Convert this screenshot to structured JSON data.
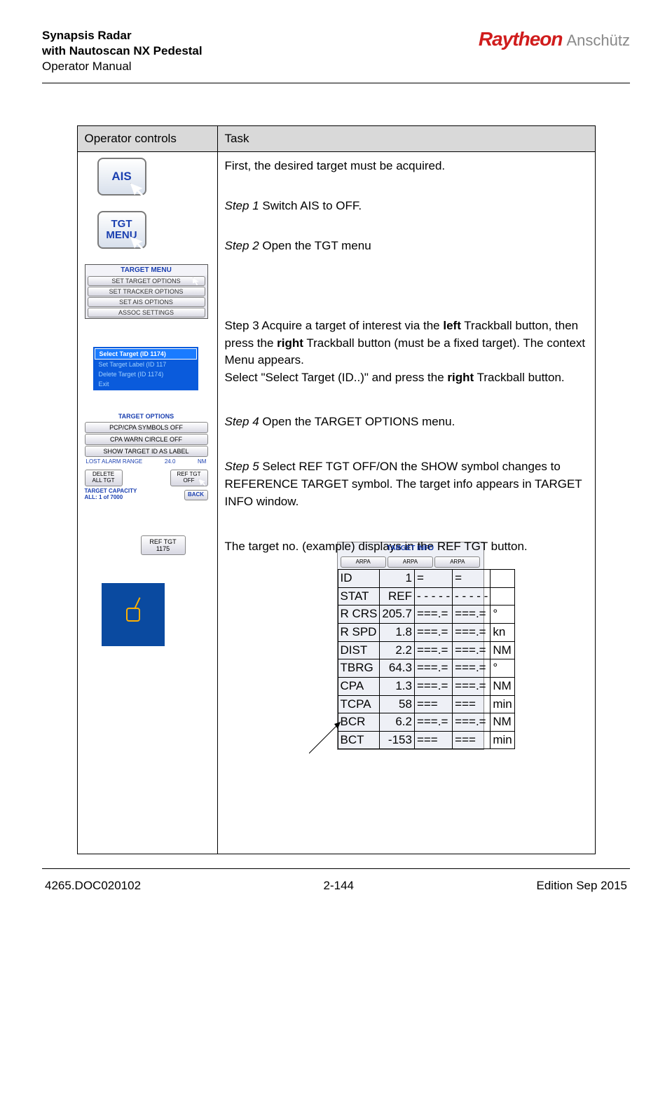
{
  "header": {
    "title_line1": "Synapsis Radar",
    "title_line2": "with Nautoscan NX Pedestal",
    "title_line3": "Operator Manual",
    "brand1": "Raytheon",
    "brand2": "Anschütz"
  },
  "table": {
    "col1_header": "Operator controls",
    "col2_header": "Task"
  },
  "task": {
    "intro": "First, the desired target must be acquired.",
    "step1_label": "Step 1",
    "step1_text": " Switch AIS to OFF.",
    "step2_label": "Step 2",
    "step2_text": " Open the TGT menu",
    "step3_full": "Step 3 Acquire a target of interest via the ",
    "step3_b1": "left",
    "step3_mid": " Trackball button, then press the ",
    "step3_b2": "right",
    "step3_tail1": " Trackball button (must be a fixed target). The context Menu appears.",
    "step3_line2a": "Select \"Select Target (ID..)\" and press the ",
    "step3_b3": "right",
    "step3_line2b": " Trackball button.",
    "step4_label": "Step 4",
    "step4_text": " Open the TARGET OPTIONS menu.",
    "step5_label": "Step 5",
    "step5_text": " Select REF TGT OFF/ON the SHOW symbol changes to REFERENCE TARGET symbol. The target info appears in TARGET INFO window.",
    "ref_text": "The target no. (example) displays in the REF TGT button."
  },
  "controls": {
    "ais_label": "AIS",
    "tgt_menu_label": "TGT\nMENU",
    "target_menu": {
      "title": "TARGET MENU",
      "items": [
        "SET TARGET OPTIONS",
        "SET TRACKER OPTIONS",
        "SET AIS OPTIONS",
        "ASSOC SETTINGS"
      ]
    },
    "ctx": {
      "row1": "Select Target (ID 1174)",
      "row2": "Set Target Label (ID 117",
      "row3": "Delete Target (ID 1174)",
      "row4": "Exit"
    },
    "opts": {
      "title": "TARGET OPTIONS",
      "items": [
        "PCP/CPA SYMBOLS OFF",
        "CPA WARN CIRCLE OFF",
        "SHOW TARGET ID AS LABEL"
      ],
      "lost_label": "LOST ALARM RANGE",
      "lost_val": "24.0",
      "lost_unit": "NM",
      "del_btn": "DELETE ALL TGT",
      "ref_btn": "REF TGT OFF",
      "back_btn": "BACK",
      "cap_label": "TARGET CAPACITY",
      "cap_val": "ALL: 1 of 7000"
    },
    "ref_btn2": "REF TGT 1175",
    "target_info": {
      "title": "TARGET INFO",
      "tabs": [
        "ARPA",
        "ARPA",
        "ARPA"
      ],
      "rows": [
        [
          "ID",
          "1",
          "=",
          "=",
          ""
        ],
        [
          "STAT",
          "REF",
          "- - - - -",
          "- - - - -",
          ""
        ],
        [
          "R CRS",
          "205.7",
          "===.=",
          "===.=",
          "°"
        ],
        [
          "R SPD",
          "1.8",
          "===.=",
          "===.=",
          "kn"
        ],
        [
          "DIST",
          "2.2",
          "===.=",
          "===.=",
          "NM"
        ],
        [
          "TBRG",
          "64.3",
          "===.=",
          "===.=",
          "°"
        ],
        [
          "CPA",
          "1.3",
          "===.=",
          "===.=",
          "NM"
        ],
        [
          "TCPA",
          "58",
          "===",
          "===",
          "min"
        ],
        [
          "BCR",
          "6.2",
          "===.=",
          "===.=",
          "NM"
        ],
        [
          "BCT",
          "-153",
          "===",
          "===",
          "min"
        ]
      ]
    }
  },
  "footer": {
    "left": "4265.DOC020102",
    "center": "2-144",
    "right": "Edition Sep 2015"
  },
  "colors": {
    "header_bg": "#d9d9d9",
    "brand_red": "#d01c1c",
    "ui_blue": "#1a3fb0",
    "radar_bg": "#0a4aa0"
  }
}
